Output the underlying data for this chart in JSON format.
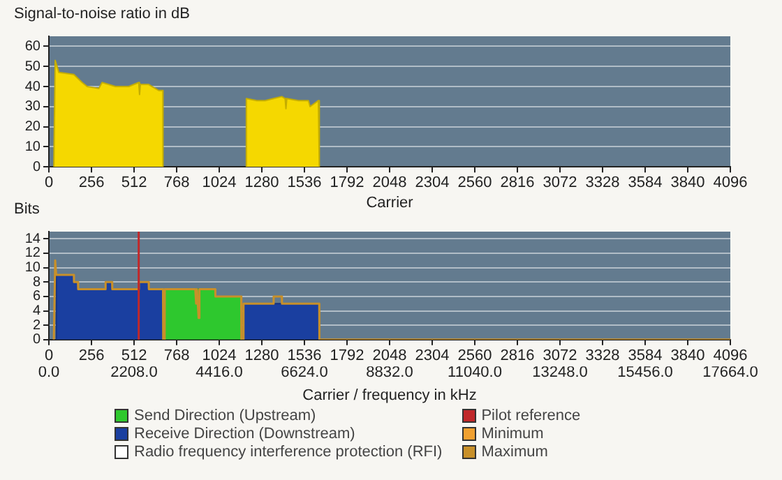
{
  "chart_data": [
    {
      "type": "area",
      "ylabel": "Signal-to-noise ratio in dB",
      "xlabel": "Carrier",
      "x": [
        30,
        38,
        42,
        60,
        150,
        200,
        230,
        300,
        320,
        400,
        480,
        540,
        545,
        550,
        600,
        640,
        660,
        685,
        686,
        1000,
        1186,
        1187,
        1250,
        1300,
        1350,
        1400,
        1420,
        1425,
        1430,
        1500,
        1560,
        1570,
        1620,
        1625,
        1626
      ],
      "values": [
        0,
        53,
        52,
        47,
        46,
        42,
        40,
        39,
        42,
        40,
        40,
        42,
        36,
        41,
        41,
        39,
        38,
        38,
        0,
        null,
        0,
        34,
        33,
        33,
        34,
        35,
        34,
        29,
        34,
        33,
        33,
        30,
        33,
        33,
        0
      ],
      "color": "#f5d800",
      "xlim": [
        0,
        4096
      ],
      "xticks": [
        0,
        256,
        512,
        768,
        1024,
        1280,
        1536,
        1792,
        2048,
        2304,
        2560,
        2816,
        3072,
        3328,
        3584,
        3840,
        4096
      ],
      "ylim": [
        0,
        65
      ],
      "yticks": [
        0,
        10,
        20,
        30,
        40,
        50,
        60
      ],
      "grid": "y"
    },
    {
      "type": "area",
      "ylabel": "Bits",
      "xlabel": "Carrier / frequency in kHz",
      "series": [
        {
          "name": "Send Direction (Upstream)",
          "color": "#2ec82e",
          "x": [
            696,
            697,
            1000,
            1001,
            1156,
            1157
          ],
          "values": [
            0,
            7,
            7,
            6,
            6,
            0
          ]
        },
        {
          "name": "Receive Direction (Downstream)",
          "color": "#1a3fa0",
          "x": [
            44,
            45,
            150,
            151,
            175,
            176,
            340,
            341,
            380,
            381,
            540,
            541,
            600,
            601,
            686,
            687,
            1000,
            1169,
            1170,
            1625,
            1626
          ],
          "values": [
            0,
            9,
            9,
            8,
            8,
            7,
            7,
            8,
            8,
            7,
            7,
            8,
            8,
            7,
            7,
            0,
            null,
            0,
            5,
            5,
            0
          ]
        },
        {
          "name": "Radio frequency interference protection (RFI)",
          "color": "#ffffff"
        },
        {
          "name": "Minimum",
          "type": "line",
          "color": "#f0a030"
        },
        {
          "name": "Maximum",
          "type": "line",
          "color": "#c8902a",
          "x": [
            30,
            38,
            44,
            150,
            151,
            175,
            176,
            340,
            341,
            380,
            381,
            540,
            541,
            600,
            601,
            686,
            687,
            696,
            697,
            880,
            885,
            890,
            900,
            905,
            950,
            1000,
            1001,
            1156,
            1157,
            1169,
            1170,
            1350,
            1351,
            1400,
            1401,
            1625,
            1626,
            4096
          ],
          "values": [
            0,
            11,
            9,
            9,
            8,
            8,
            7,
            7,
            8,
            8,
            7,
            7,
            8,
            8,
            7,
            7,
            0,
            0,
            7,
            7,
            5,
            7,
            3,
            7,
            7,
            7,
            6,
            6,
            0,
            0,
            5,
            5,
            6,
            6,
            5,
            5,
            0,
            0
          ]
        }
      ],
      "ref_lines": [
        {
          "axis": "x",
          "value": 540,
          "label": "Pilot reference",
          "color": "#c0282a"
        }
      ],
      "xlim": [
        0,
        4096
      ],
      "xticks": [
        0,
        256,
        512,
        768,
        1024,
        1280,
        1536,
        1792,
        2048,
        2304,
        2560,
        2816,
        3072,
        3328,
        3584,
        3840,
        4096
      ],
      "x2lim": [
        0,
        17664
      ],
      "x2ticks": [
        {
          "value": 0,
          "label": "0.0"
        },
        {
          "value": 2208,
          "label": "2208.0"
        },
        {
          "value": 4416,
          "label": "4416.0"
        },
        {
          "value": 6624,
          "label": "6624.0"
        },
        {
          "value": 8832,
          "label": "8832.0"
        },
        {
          "value": 11040,
          "label": "11040.0"
        },
        {
          "value": 13248,
          "label": "13248.0"
        },
        {
          "value": 15456,
          "label": "15456.0"
        },
        {
          "value": 17664,
          "label": "17664.0"
        }
      ],
      "ylim": [
        0,
        15
      ],
      "yticks": [
        0,
        2,
        4,
        6,
        8,
        10,
        12,
        14
      ],
      "grid": "y",
      "legend": "bottom",
      "marker": "none"
    }
  ]
}
